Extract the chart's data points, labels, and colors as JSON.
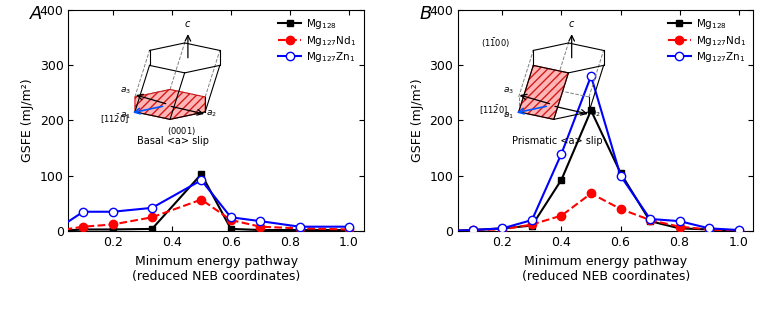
{
  "panel_A": {
    "label": "Basal <a> slip",
    "x_Mg128": [
      0.0,
      0.1,
      0.2,
      0.333,
      0.5,
      0.6,
      0.7,
      0.833,
      1.0
    ],
    "y_Mg128": [
      0,
      3,
      3,
      4,
      103,
      4,
      2,
      2,
      2
    ],
    "x_Mg127Nd1": [
      0.0,
      0.1,
      0.2,
      0.333,
      0.5,
      0.6,
      0.7,
      0.833,
      1.0
    ],
    "y_Mg127Nd1": [
      0,
      8,
      12,
      25,
      57,
      20,
      8,
      5,
      3
    ],
    "x_Mg127Zn1": [
      0.0,
      0.1,
      0.2,
      0.333,
      0.5,
      0.6,
      0.7,
      0.833,
      1.0
    ],
    "y_Mg127Zn1": [
      0,
      35,
      35,
      42,
      92,
      25,
      18,
      8,
      8
    ]
  },
  "panel_B": {
    "label": "Prismatic <a> slip",
    "x_Mg128": [
      0.0,
      0.1,
      0.2,
      0.3,
      0.4,
      0.5,
      0.6,
      0.7,
      0.8,
      0.9,
      1.0
    ],
    "y_Mg128": [
      0,
      2,
      5,
      10,
      93,
      218,
      105,
      18,
      5,
      3,
      0
    ],
    "x_Mg127Nd1": [
      0.0,
      0.1,
      0.2,
      0.3,
      0.4,
      0.5,
      0.6,
      0.7,
      0.8,
      0.9,
      1.0
    ],
    "y_Mg127Nd1": [
      0,
      2,
      3,
      12,
      28,
      68,
      40,
      20,
      8,
      3,
      0
    ],
    "x_Mg127Zn1": [
      0.0,
      0.1,
      0.2,
      0.3,
      0.4,
      0.5,
      0.6,
      0.7,
      0.8,
      0.9,
      1.0
    ],
    "y_Mg127Zn1": [
      0,
      2,
      5,
      20,
      140,
      280,
      100,
      22,
      18,
      5,
      2
    ]
  },
  "ylim": [
    0,
    400
  ],
  "yticks": [
    0,
    100,
    200,
    300,
    400
  ],
  "xlim": [
    0.05,
    1.05
  ],
  "xticks": [
    0.2,
    0.4,
    0.6,
    0.8,
    1.0
  ],
  "color_Mg128": "#000000",
  "color_Mg127Nd1": "#ff0000",
  "color_Mg127Zn1": "#0000ff",
  "ylabel": "GSFE (mJ/m²)",
  "xlabel_line1": "Minimum energy pathway",
  "xlabel_line2": "(reduced NEB coordinates)",
  "legend_labels": [
    "Mg$_{128}$",
    "Mg$_{127}$Nd$_1$",
    "Mg$_{127}$Zn$_1$"
  ],
  "panel_letters": [
    "A",
    "B"
  ],
  "figsize": [
    7.61,
    3.21
  ],
  "dpi": 100
}
